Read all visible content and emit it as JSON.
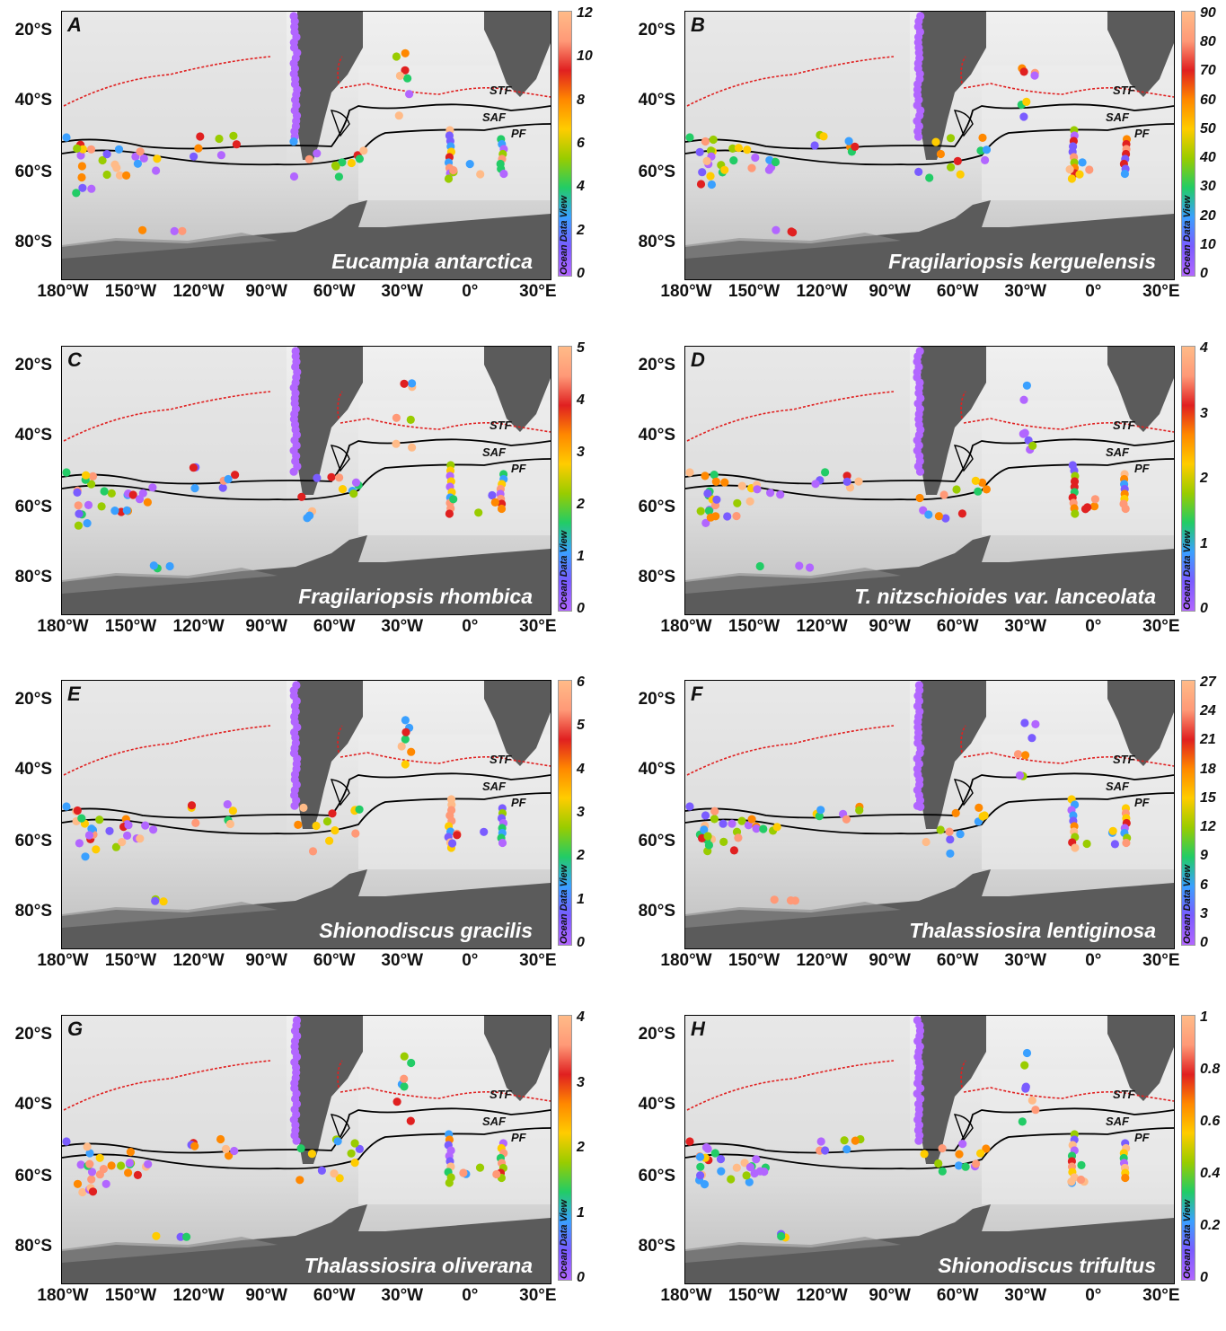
{
  "lat_labels": [
    "20°S",
    "40°S",
    "60°S",
    "80°S"
  ],
  "lon_labels": [
    "180°W",
    "150°W",
    "120°W",
    "90°W",
    "60°W",
    "30°W",
    "0°",
    "30°E"
  ],
  "front_labels": [
    "STF",
    "SAF",
    "PF"
  ],
  "colorbar_title": "Ocean Data View",
  "colors": {
    "ramp": [
      "#b266ff",
      "#7a5cff",
      "#3aa0ff",
      "#22cc66",
      "#99cc00",
      "#ffcc00",
      "#ff8800",
      "#e02020",
      "#ff9977",
      "#ffbb88"
    ],
    "land": "#5b5b5b",
    "ocean_light": "#e0e0e0",
    "ocean_shelf": "#cfcfcf",
    "stf_line": "#e02020",
    "front_line": "#000000"
  },
  "panels": [
    {
      "letter": "A",
      "species": "Eucampia antarctica",
      "ticks": [
        "12",
        "10",
        "8",
        "6",
        "4",
        "2",
        "0"
      ]
    },
    {
      "letter": "B",
      "species": "Fragilariopsis kerguelensis",
      "ticks": [
        "90",
        "80",
        "70",
        "60",
        "50",
        "40",
        "30",
        "20",
        "10",
        "0"
      ]
    },
    {
      "letter": "C",
      "species": "Fragilariopsis rhombica",
      "ticks": [
        "5",
        "4",
        "3",
        "2",
        "1",
        "0"
      ]
    },
    {
      "letter": "D",
      "species": "T. nitzschioides var. lanceolata",
      "ticks": [
        "4",
        "3",
        "2",
        "1",
        "0"
      ]
    },
    {
      "letter": "E",
      "species": "Shionodiscus gracilis",
      "ticks": [
        "6",
        "5",
        "4",
        "3",
        "2",
        "1",
        "0"
      ]
    },
    {
      "letter": "F",
      "species": "Thalassiosira lentiginosa",
      "ticks": [
        "27",
        "24",
        "21",
        "18",
        "15",
        "12",
        "9",
        "6",
        "3",
        "0"
      ]
    },
    {
      "letter": "G",
      "species": "Thalassiosira oliverana",
      "ticks": [
        "4",
        "3",
        "2",
        "1",
        "0"
      ]
    },
    {
      "letter": "H",
      "species": "Shionodiscus trifultus",
      "ticks": [
        "1",
        "0.8",
        "0.6",
        "0.4",
        "0.2",
        "0"
      ]
    }
  ]
}
